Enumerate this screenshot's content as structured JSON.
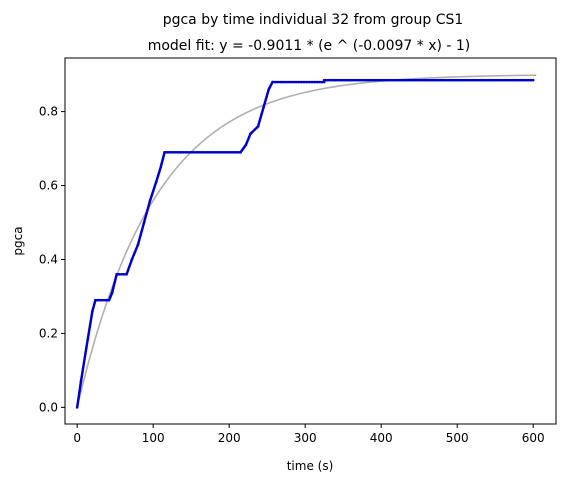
{
  "chart_data": {
    "type": "scatter",
    "title": "pgca by time individual 32 from group CS1",
    "subtitle": "model fit: y = -0.9011 * (e ^ (-0.0097 * x) - 1)",
    "xlabel": "time (s)",
    "ylabel": "pgca",
    "xlim": [
      -16,
      630
    ],
    "ylim": [
      -0.045,
      0.945
    ],
    "xticks": [
      0,
      100,
      200,
      300,
      400,
      500,
      600
    ],
    "yticks": [
      0.0,
      0.2,
      0.4,
      0.6,
      0.8
    ],
    "xtick_labels": [
      "0",
      "100",
      "200",
      "300",
      "400",
      "500",
      "600"
    ],
    "ytick_labels": [
      "0.0",
      "0.2",
      "0.4",
      "0.6",
      "0.8"
    ],
    "grid": false,
    "legend": "none",
    "series": [
      {
        "kind": "scatter",
        "color": "#0000cc",
        "segments": [
          {
            "x0": 0,
            "y0": 0.0,
            "x1": 5,
            "y1": 0.07
          },
          {
            "x0": 5,
            "y0": 0.07,
            "x1": 12,
            "y1": 0.16
          },
          {
            "x0": 12,
            "y0": 0.16,
            "x1": 20,
            "y1": 0.26
          },
          {
            "x0": 20,
            "y0": 0.26,
            "x1": 24,
            "y1": 0.29
          },
          {
            "x0": 24,
            "y0": 0.29,
            "x1": 42,
            "y1": 0.29
          },
          {
            "x0": 42,
            "y0": 0.29,
            "x1": 46,
            "y1": 0.31
          },
          {
            "x0": 46,
            "y0": 0.31,
            "x1": 52,
            "y1": 0.36
          },
          {
            "x0": 52,
            "y0": 0.36,
            "x1": 65,
            "y1": 0.36
          },
          {
            "x0": 65,
            "y0": 0.36,
            "x1": 72,
            "y1": 0.4
          },
          {
            "x0": 72,
            "y0": 0.4,
            "x1": 80,
            "y1": 0.44
          },
          {
            "x0": 80,
            "y0": 0.44,
            "x1": 88,
            "y1": 0.5
          },
          {
            "x0": 88,
            "y0": 0.5,
            "x1": 96,
            "y1": 0.56
          },
          {
            "x0": 96,
            "y0": 0.56,
            "x1": 104,
            "y1": 0.61
          },
          {
            "x0": 104,
            "y0": 0.61,
            "x1": 110,
            "y1": 0.65
          },
          {
            "x0": 110,
            "y0": 0.65,
            "x1": 115,
            "y1": 0.69
          },
          {
            "x0": 115,
            "y0": 0.69,
            "x1": 215,
            "y1": 0.69
          },
          {
            "x0": 215,
            "y0": 0.69,
            "x1": 222,
            "y1": 0.71
          },
          {
            "x0": 222,
            "y0": 0.71,
            "x1": 228,
            "y1": 0.74
          },
          {
            "x0": 228,
            "y0": 0.74,
            "x1": 238,
            "y1": 0.76
          },
          {
            "x0": 238,
            "y0": 0.76,
            "x1": 245,
            "y1": 0.81
          },
          {
            "x0": 245,
            "y0": 0.81,
            "x1": 252,
            "y1": 0.86
          },
          {
            "x0": 252,
            "y0": 0.86,
            "x1": 257,
            "y1": 0.88
          },
          {
            "x0": 257,
            "y0": 0.88,
            "x1": 325,
            "y1": 0.88
          },
          {
            "x0": 325,
            "y0": 0.885,
            "x1": 600,
            "y1": 0.885
          }
        ]
      },
      {
        "kind": "line",
        "color": "#b0b0b0",
        "model": {
          "a": 0.9011,
          "k": 0.0097
        },
        "x_range": [
          0,
          605
        ]
      }
    ]
  }
}
